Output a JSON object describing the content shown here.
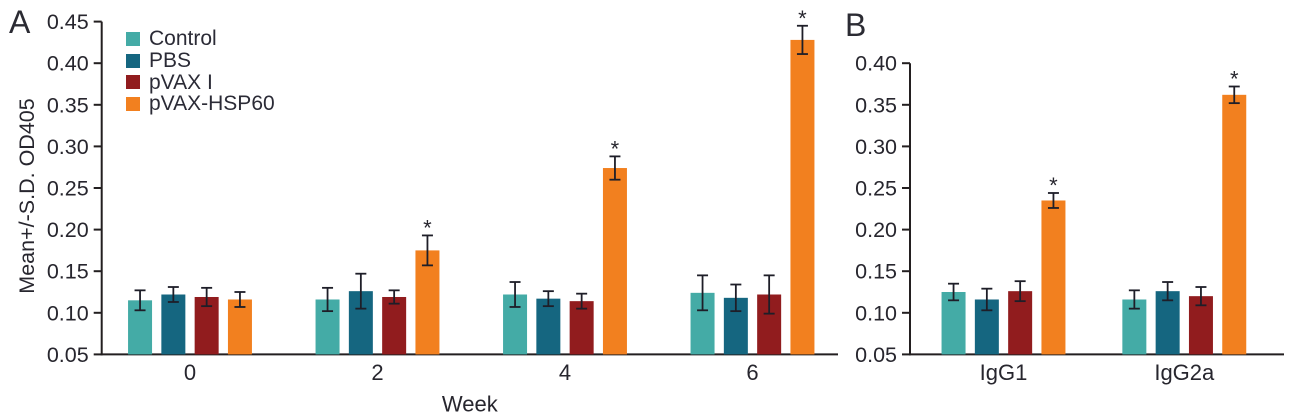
{
  "panels": [
    {
      "letter": "A"
    },
    {
      "letter": "B"
    }
  ],
  "significance_marker": "*",
  "colors": {
    "axis": "#231F20",
    "text": "#27262e",
    "error_bar": "#1e1e28",
    "control": "#44ABA6",
    "pbs": "#156680",
    "pvax_i": "#911C1E",
    "pvax_hsp60": "#F2801F"
  },
  "chart_data": [
    {
      "id": "A",
      "type": "bar",
      "title": "",
      "categories": [
        "0",
        "2",
        "4",
        "6"
      ],
      "xlabel": "Week",
      "ylabel": "Mean+/-S.D. OD405",
      "ylim": [
        0.05,
        0.45
      ],
      "ytick_step": 0.05,
      "grid": false,
      "legend_position": "top-left-inside",
      "series": [
        {
          "name": "Control",
          "color": "#44ABA6",
          "values": [
            0.115,
            0.116,
            0.122,
            0.124
          ],
          "errors": [
            0.012,
            0.014,
            0.015,
            0.021
          ],
          "sig": [
            false,
            false,
            false,
            false
          ]
        },
        {
          "name": "PBS",
          "color": "#156680",
          "values": [
            0.122,
            0.126,
            0.117,
            0.118
          ],
          "errors": [
            0.009,
            0.021,
            0.009,
            0.016
          ],
          "sig": [
            false,
            false,
            false,
            false
          ]
        },
        {
          "name": "pVAX I",
          "color": "#911C1E",
          "values": [
            0.119,
            0.119,
            0.114,
            0.122
          ],
          "errors": [
            0.011,
            0.008,
            0.009,
            0.023
          ],
          "sig": [
            false,
            false,
            false,
            false
          ]
        },
        {
          "name": "pVAX-HSP60",
          "color": "#F2801F",
          "values": [
            0.116,
            0.175,
            0.274,
            0.428
          ],
          "errors": [
            0.009,
            0.018,
            0.014,
            0.017
          ],
          "sig": [
            false,
            true,
            true,
            true
          ]
        }
      ]
    },
    {
      "id": "B",
      "type": "bar",
      "title": "",
      "categories": [
        "IgG1",
        "IgG2a"
      ],
      "xlabel": "",
      "ylabel": "",
      "ylim": [
        0.05,
        0.4
      ],
      "ytick_step": 0.05,
      "grid": false,
      "legend_position": "none",
      "series": [
        {
          "name": "Control",
          "color": "#44ABA6",
          "values": [
            0.125,
            0.116
          ],
          "errors": [
            0.01,
            0.011
          ],
          "sig": [
            false,
            false
          ]
        },
        {
          "name": "PBS",
          "color": "#156680",
          "values": [
            0.116,
            0.126
          ],
          "errors": [
            0.013,
            0.011
          ],
          "sig": [
            false,
            false
          ]
        },
        {
          "name": "pVAX I",
          "color": "#911C1E",
          "values": [
            0.126,
            0.12
          ],
          "errors": [
            0.012,
            0.011
          ],
          "sig": [
            false,
            false
          ]
        },
        {
          "name": "pVAX-HSP60",
          "color": "#F2801F",
          "values": [
            0.235,
            0.362
          ],
          "errors": [
            0.009,
            0.01
          ],
          "sig": [
            true,
            true
          ]
        }
      ]
    }
  ]
}
